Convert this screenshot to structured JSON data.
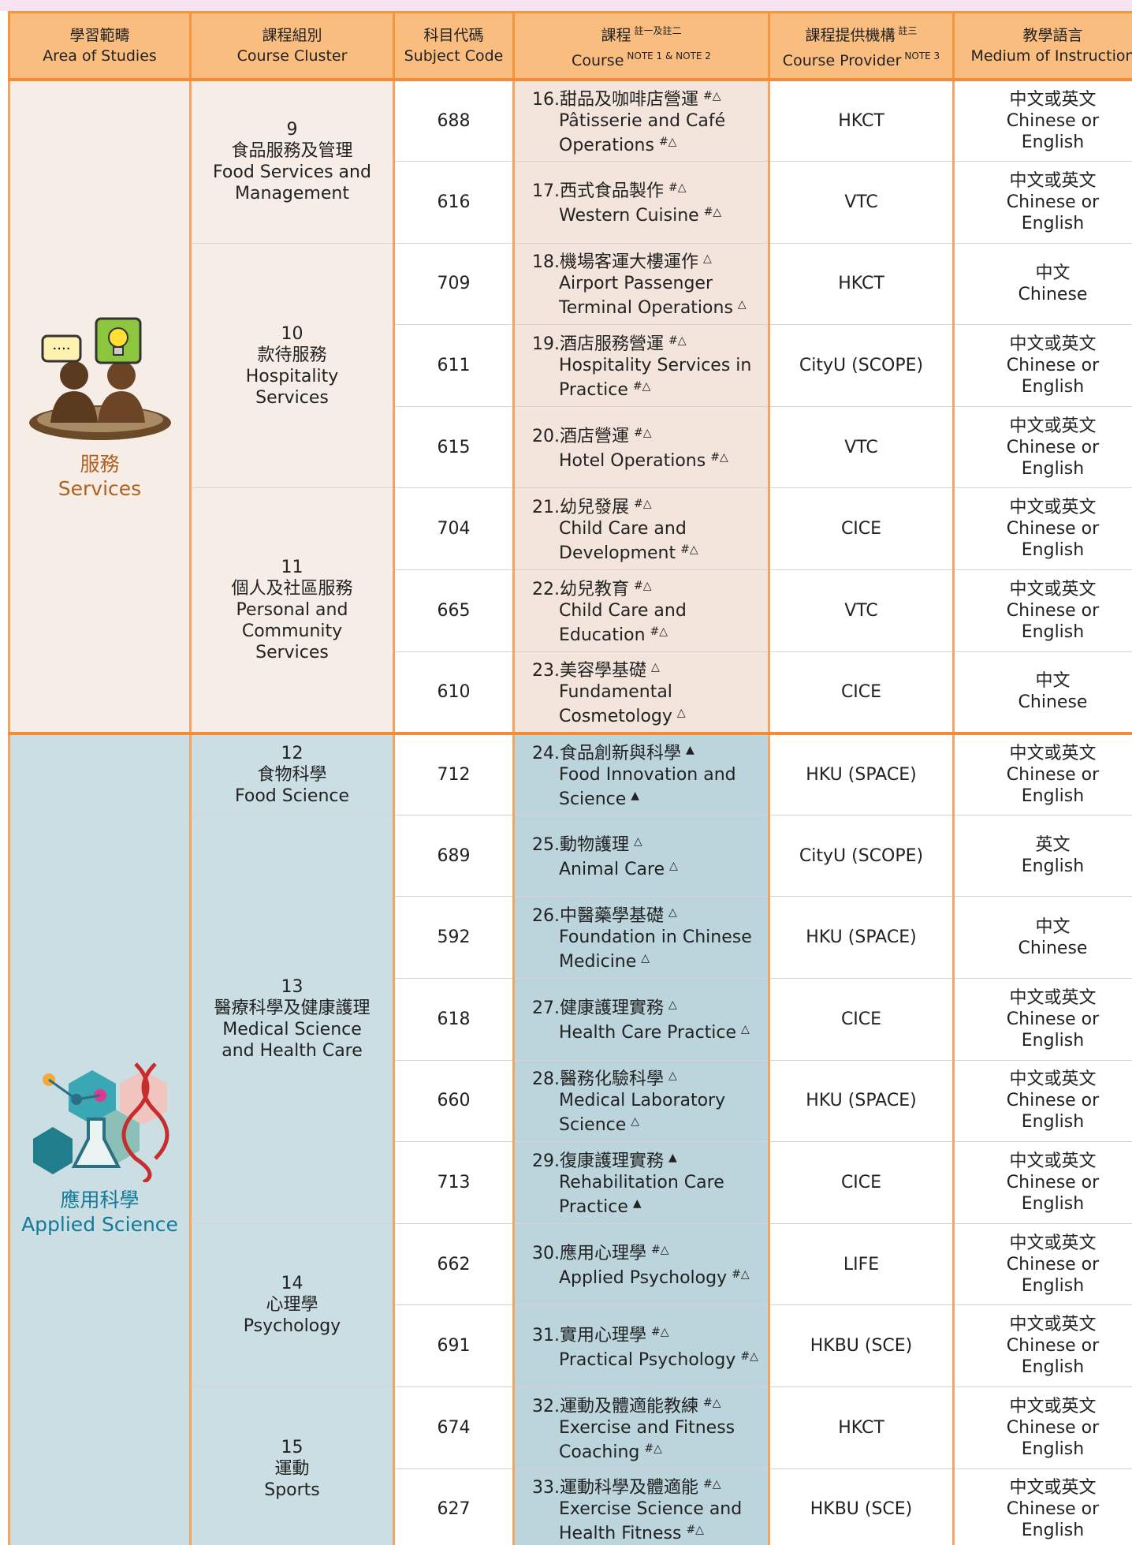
{
  "header": {
    "area": {
      "zh": "學習範疇",
      "en": "Area of Studies"
    },
    "cluster": {
      "zh": "課程組別",
      "en": "Course Cluster"
    },
    "code": {
      "zh": "科目代碼",
      "en": "Subject Code"
    },
    "course": {
      "zh": "課程",
      "zh_note": "註一及註二",
      "en": "Course",
      "en_note": "NOTE 1 & NOTE 2"
    },
    "provider": {
      "zh": "課程提供機構",
      "zh_note": "註三",
      "en": "Course Provider",
      "en_note": "NOTE 3"
    },
    "medium": {
      "zh": "教學語言",
      "en": "Medium of Instruction"
    }
  },
  "areas": [
    {
      "name_zh": "服務",
      "name_en": "Services",
      "clusters": [
        {
          "number": "9",
          "name_zh": "食品服務及管理",
          "name_en": "Food Services and Management",
          "courses": [
            {
              "code": "688",
              "number": "16.",
              "title_zh": "甜品及咖啡店營運",
              "mark_zh": "#△",
              "title_en": "Pâtisserie and Café Operations",
              "mark_en": "#△",
              "provider": "HKCT",
              "medium_zh": "中文或英文",
              "medium_en": "Chinese or English"
            },
            {
              "code": "616",
              "number": "17.",
              "title_zh": "西式食品製作",
              "mark_zh": "#△",
              "title_en": "Western Cuisine",
              "mark_en": "#△",
              "provider": "VTC",
              "medium_zh": "中文或英文",
              "medium_en": "Chinese or English"
            }
          ]
        },
        {
          "number": "10",
          "name_zh": "款待服務",
          "name_en": "Hospitality Services",
          "courses": [
            {
              "code": "709",
              "number": "18.",
              "title_zh": "機場客運大樓運作",
              "mark_zh": "△",
              "title_en": "Airport Passenger Terminal Operations",
              "mark_en": "△",
              "provider": "HKCT",
              "medium_zh": "中文",
              "medium_en": "Chinese"
            },
            {
              "code": "611",
              "number": "19.",
              "title_zh": "酒店服務營運",
              "mark_zh": "#△",
              "title_en": "Hospitality Services in Practice",
              "mark_en": "#△",
              "provider": "CityU (SCOPE)",
              "medium_zh": "中文或英文",
              "medium_en": "Chinese or English"
            },
            {
              "code": "615",
              "number": "20.",
              "title_zh": "酒店營運",
              "mark_zh": "#△",
              "title_en": "Hotel Operations",
              "mark_en": "#△",
              "provider": "VTC",
              "medium_zh": "中文或英文",
              "medium_en": "Chinese or English"
            }
          ]
        },
        {
          "number": "11",
          "name_zh": "個人及社區服務",
          "name_en": "Personal and Community Services",
          "courses": [
            {
              "code": "704",
              "number": "21.",
              "title_zh": "幼兒發展",
              "mark_zh": "#△",
              "title_en": "Child Care and Development",
              "mark_en": "#△",
              "provider": "CICE",
              "medium_zh": "中文或英文",
              "medium_en": "Chinese or English"
            },
            {
              "code": "665",
              "number": "22.",
              "title_zh": "幼兒教育",
              "mark_zh": "#△",
              "title_en": "Child Care and Education",
              "mark_en": "#△",
              "provider": "VTC",
              "medium_zh": "中文或英文",
              "medium_en": "Chinese or English"
            },
            {
              "code": "610",
              "number": "23.",
              "title_zh": "美容學基礎",
              "mark_zh": "△",
              "title_en": "Fundamental Cosmetology",
              "mark_en": "△",
              "provider": "CICE",
              "medium_zh": "中文",
              "medium_en": "Chinese"
            }
          ]
        }
      ]
    },
    {
      "name_zh": "應用科學",
      "name_en": "Applied Science",
      "clusters": [
        {
          "number": "12",
          "name_zh": "食物科學",
          "name_en": "Food Science",
          "courses": [
            {
              "code": "712",
              "number": "24.",
              "title_zh": "食品創新與科學",
              "mark_zh": "▲",
              "title_en": "Food Innovation and Science",
              "mark_en": "▲",
              "provider": "HKU (SPACE)",
              "medium_zh": "中文或英文",
              "medium_en": "Chinese or English"
            }
          ]
        },
        {
          "number": "13",
          "name_zh": "醫療科學及健康護理",
          "name_en": "Medical Science and Health Care",
          "courses": [
            {
              "code": "689",
              "number": "25.",
              "title_zh": "動物護理",
              "mark_zh": "△",
              "title_en": "Animal Care",
              "mark_en": "△",
              "provider": "CityU (SCOPE)",
              "medium_zh": "英文",
              "medium_en": "English"
            },
            {
              "code": "592",
              "number": "26.",
              "title_zh": "中醫藥學基礎",
              "mark_zh": "△",
              "title_en": "Foundation in Chinese Medicine",
              "mark_en": "△",
              "provider": "HKU (SPACE)",
              "medium_zh": "中文",
              "medium_en": "Chinese"
            },
            {
              "code": "618",
              "number": "27.",
              "title_zh": "健康護理實務",
              "mark_zh": "△",
              "title_en": "Health Care Practice",
              "mark_en": "△",
              "provider": "CICE",
              "medium_zh": "中文或英文",
              "medium_en": "Chinese or English"
            },
            {
              "code": "660",
              "number": "28.",
              "title_zh": "醫務化驗科學",
              "mark_zh": "△",
              "title_en": "Medical Laboratory Science",
              "mark_en": "△",
              "provider": "HKU (SPACE)",
              "medium_zh": "中文或英文",
              "medium_en": "Chinese or English"
            },
            {
              "code": "713",
              "number": "29.",
              "title_zh": "復康護理實務",
              "mark_zh": "▲",
              "title_en": "Rehabilitation Care Practice",
              "mark_en": "▲",
              "provider": "CICE",
              "medium_zh": "中文或英文",
              "medium_en": "Chinese or English"
            }
          ]
        },
        {
          "number": "14",
          "name_zh": "心理學",
          "name_en": "Psychology",
          "courses": [
            {
              "code": "662",
              "number": "30.",
              "title_zh": "應用心理學",
              "mark_zh": "#△",
              "title_en": "Applied Psychology",
              "mark_en": "#△",
              "provider": "LIFE",
              "medium_zh": "中文或英文",
              "medium_en": "Chinese or English"
            },
            {
              "code": "691",
              "number": "31.",
              "title_zh": "實用心理學",
              "mark_zh": "#△",
              "title_en": "Practical Psychology",
              "mark_en": "#△",
              "provider": "HKBU (SCE)",
              "medium_zh": "中文或英文",
              "medium_en": "Chinese or English"
            }
          ]
        },
        {
          "number": "15",
          "name_zh": "運動",
          "name_en": "Sports",
          "courses": [
            {
              "code": "674",
              "number": "32.",
              "title_zh": "運動及體適能教練",
              "mark_zh": "#△",
              "title_en": "Exercise and Fitness Coaching",
              "mark_en": "#△",
              "provider": "HKCT",
              "medium_zh": "中文或英文",
              "medium_en": "Chinese or English"
            },
            {
              "code": "627",
              "number": "33.",
              "title_zh": "運動科學及體適能",
              "mark_zh": "#△",
              "title_en": "Exercise Science and Health Fitness",
              "mark_en": "#△",
              "provider": "HKBU (SCE)",
              "medium_zh": "中文或英文",
              "medium_en": "Chinese or English"
            }
          ]
        }
      ]
    }
  ]
}
